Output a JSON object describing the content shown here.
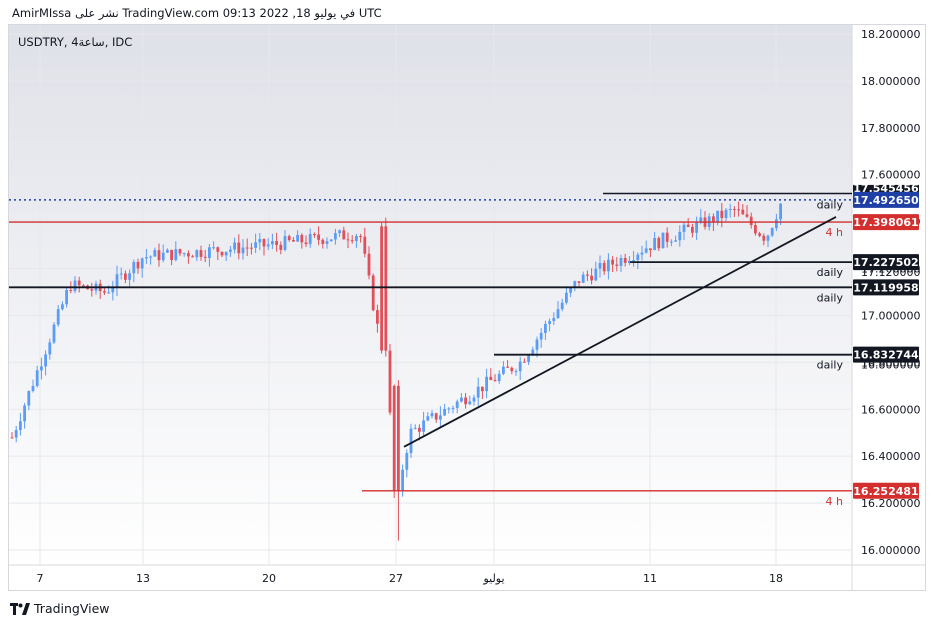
{
  "header": {
    "attribution": "AmirMIssa نشر على TradingView.com في يوليو 18, 2022 09:13 UTC",
    "symbol": "USDTRY, 4ساعة, IDC"
  },
  "branding": {
    "logo_text": "TradingView",
    "logo_icon": "tradingview-logo-icon"
  },
  "colors": {
    "up": "#5b9cf6",
    "down": "#e0505a",
    "background_top": "#dfe1e8",
    "background_bottom": "#ffffff",
    "support": "#131722",
    "red_level": "#d32f2f",
    "last_price": "#1e3fa6"
  },
  "chart_data": {
    "type": "candlestick",
    "ylim": [
      15.96,
      18.24
    ],
    "y_ticks": [
      "16.000000",
      "16.200000",
      "16.400000",
      "16.600000",
      "16.800000",
      "17.000000",
      "17.200000",
      "17.400000",
      "17.600000",
      "17.800000",
      "18.000000",
      "18.200000"
    ],
    "x_ticks": [
      "7",
      "13",
      "20",
      "27",
      "يوليو",
      "11",
      "18"
    ],
    "last_price": {
      "value": 17.49265,
      "label": "17.492650",
      "partial_label": "17.545456",
      "style": "dotted"
    },
    "levels": [
      {
        "value": 17.398061,
        "label": "17.398061",
        "color": "red",
        "annotation": "4 h"
      },
      {
        "value": 17.227502,
        "label": "17.227502",
        "color": "black",
        "annotation": "daily",
        "partial_label": "17.120000"
      },
      {
        "value": 17.119958,
        "label": "17.119958",
        "color": "black",
        "annotation": "daily"
      },
      {
        "value": 16.832744,
        "label": "16.832744",
        "color": "black",
        "annotation": "daily",
        "partial_label": "16.800000"
      },
      {
        "value": 16.252481,
        "label": "16.252481",
        "color": "red",
        "annotation": "4 h"
      }
    ],
    "extra_lines": [
      {
        "value": 17.52,
        "annotation": "daily"
      }
    ],
    "trendline": {
      "from": {
        "x": "Jun 27",
        "y": 16.44
      },
      "to": {
        "x": "Jul 20",
        "y": 17.42
      }
    },
    "ohlc_summary": [
      {
        "x": "Jun 7",
        "close": 16.48
      },
      {
        "x": "Jun 9",
        "close": 17.13
      },
      {
        "x": "Jun 10",
        "close": 17.1
      },
      {
        "x": "Jun 13",
        "close": 17.25
      },
      {
        "x": "Jun 20",
        "close": 17.3
      },
      {
        "x": "Jun 24",
        "close": 17.35
      },
      {
        "x": "Jun 26",
        "close": 16.8
      },
      {
        "x": "Jun 27",
        "close": 16.26
      },
      {
        "x": "Jun 28",
        "close": 16.5
      },
      {
        "x": "Jul 4",
        "close": 16.8
      },
      {
        "x": "Jul 6",
        "close": 17.15
      },
      {
        "x": "Jul 11",
        "close": 17.3
      },
      {
        "x": "Jul 14",
        "close": 17.45
      },
      {
        "x": "Jul 17",
        "close": 17.33
      },
      {
        "x": "Jul 18",
        "close": 17.49
      }
    ]
  }
}
